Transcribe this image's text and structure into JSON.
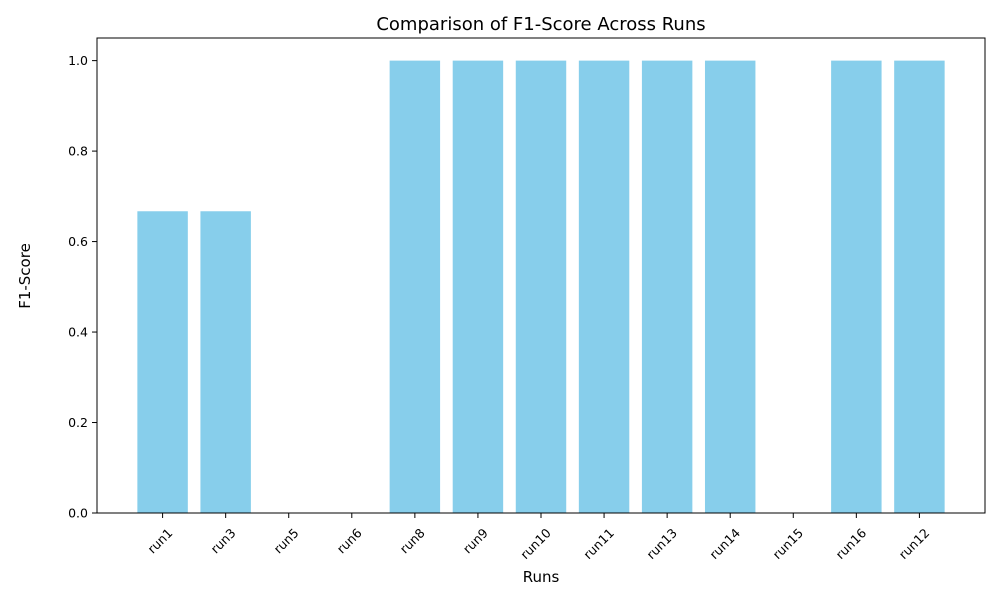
{
  "chart_data": {
    "type": "bar",
    "title": "Comparison of F1-Score Across Runs",
    "xlabel": "Runs",
    "ylabel": "F1-Score",
    "categories": [
      "run1",
      "run3",
      "run5",
      "run6",
      "run8",
      "run9",
      "run10",
      "run11",
      "run13",
      "run14",
      "run15",
      "run16",
      "run12"
    ],
    "values": [
      0.667,
      0.667,
      0.0,
      0.0,
      1.0,
      1.0,
      1.0,
      1.0,
      1.0,
      1.0,
      0.0,
      1.0,
      1.0
    ],
    "ylim": [
      0,
      1.05
    ],
    "yticks": [
      "0.0",
      "0.2",
      "0.4",
      "0.6",
      "0.8",
      "1.0"
    ],
    "grid": false,
    "bar_color": "#87ceeb"
  }
}
